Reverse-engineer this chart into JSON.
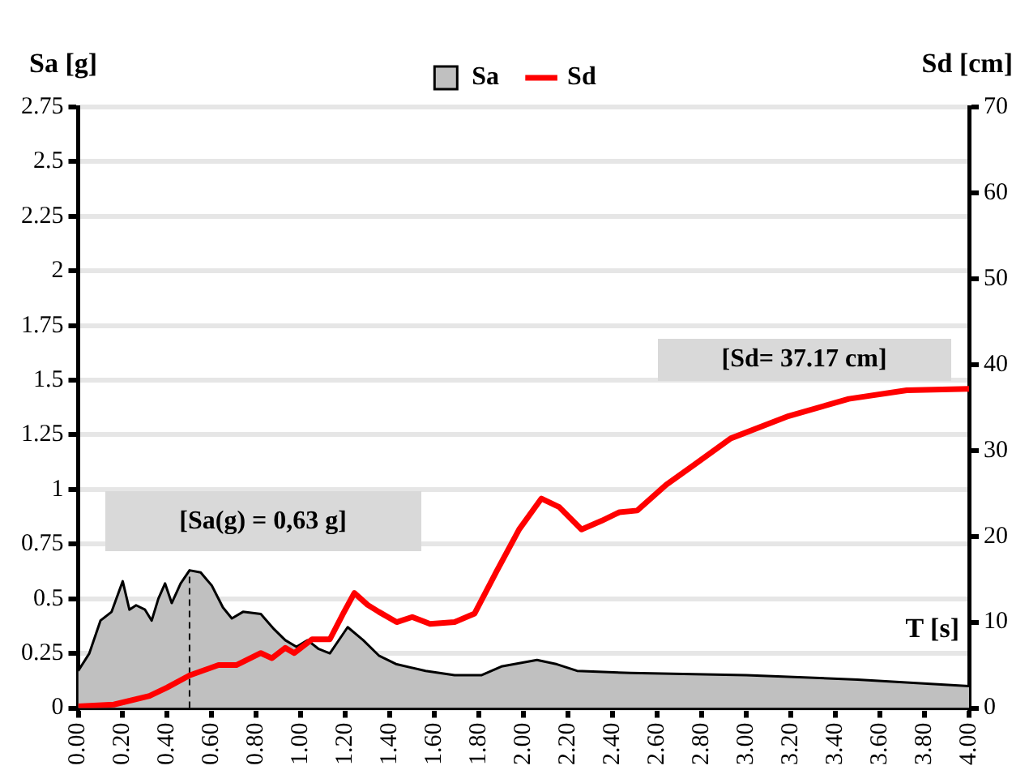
{
  "chart_data": {
    "type": "area",
    "ylabel": "Sa [g]",
    "y2label": "Sd [cm]",
    "xlabel": "T [s]",
    "annotations": [
      "[Sa(g) = 0,63 g]",
      "[Sd= 37.17 cm]"
    ],
    "series": [
      {
        "name": "Sa",
        "color": "#c0c0c0",
        "x": [
          0,
          0.05,
          0.1,
          0.15,
          0.2,
          0.23,
          0.26,
          0.3,
          0.33,
          0.36,
          0.39,
          0.42,
          0.46,
          0.5,
          0.55,
          0.6,
          0.65,
          0.69,
          0.74,
          0.82,
          0.88,
          0.93,
          0.98,
          1.03,
          1.08,
          1.13,
          1.21,
          1.28,
          1.35,
          1.43,
          1.56,
          1.69,
          1.81,
          1.9,
          2.06,
          2.15,
          2.24,
          2.48,
          3.0,
          3.5,
          4.0
        ],
        "values": [
          0.17,
          0.25,
          0.4,
          0.44,
          0.58,
          0.45,
          0.47,
          0.45,
          0.4,
          0.5,
          0.57,
          0.48,
          0.57,
          0.63,
          0.62,
          0.56,
          0.46,
          0.41,
          0.44,
          0.43,
          0.36,
          0.31,
          0.28,
          0.31,
          0.27,
          0.25,
          0.37,
          0.31,
          0.24,
          0.2,
          0.17,
          0.15,
          0.15,
          0.19,
          0.22,
          0.2,
          0.17,
          0.16,
          0.15,
          0.13,
          0.1
        ]
      },
      {
        "name": "Sd",
        "type": "line",
        "color": "#ff0000",
        "axis": "y2",
        "x": [
          0,
          0.16,
          0.32,
          0.4,
          0.5,
          0.63,
          0.71,
          0.82,
          0.87,
          0.93,
          0.97,
          1.05,
          1.13,
          1.19,
          1.24,
          1.3,
          1.35,
          1.43,
          1.5,
          1.58,
          1.69,
          1.78,
          1.88,
          1.98,
          2.08,
          2.16,
          2.26,
          2.35,
          2.43,
          2.51,
          2.64,
          2.77,
          2.93,
          3.19,
          3.46,
          3.72,
          4.0
        ],
        "values": [
          0.2,
          0.4,
          1.4,
          2.4,
          3.8,
          5,
          5,
          6.4,
          5.8,
          7,
          6.4,
          8,
          8,
          11,
          13.4,
          12,
          11.2,
          10,
          10.6,
          9.8,
          10,
          11,
          16,
          20.8,
          24.4,
          23.4,
          20.8,
          21.8,
          22.8,
          23,
          26,
          28.4,
          31.4,
          34,
          36,
          37,
          37.17
        ]
      },
      {
        "type": "line",
        "color": "#000000",
        "line_style": "dashed",
        "x": [
          0.5,
          0.5
        ],
        "values": [
          0,
          0.63
        ]
      }
    ],
    "xlim": [
      0,
      4
    ],
    "xticks": [
      {
        "value": 0,
        "label": "0.00"
      },
      {
        "value": 0.2,
        "label": "0.20"
      },
      {
        "value": 0.4,
        "label": "0.40"
      },
      {
        "value": 0.6,
        "label": "0.60"
      },
      {
        "value": 0.8,
        "label": "0.80"
      },
      {
        "value": 1,
        "label": "1.00"
      },
      {
        "value": 1.2,
        "label": "1.20"
      },
      {
        "value": 1.4,
        "label": "1.40"
      },
      {
        "value": 1.6,
        "label": "1.60"
      },
      {
        "value": 1.8,
        "label": "1.80"
      },
      {
        "value": 2,
        "label": "2.00"
      },
      {
        "value": 2.2,
        "label": "2.20"
      },
      {
        "value": 2.4,
        "label": "2.40"
      },
      {
        "value": 2.6,
        "label": "2.60"
      },
      {
        "value": 2.8,
        "label": "2.80"
      },
      {
        "value": 3,
        "label": "3.00"
      },
      {
        "value": 3.2,
        "label": "3.20"
      },
      {
        "value": 3.4,
        "label": "3.40"
      },
      {
        "value": 3.6,
        "label": "3.60"
      },
      {
        "value": 3.8,
        "label": "3.80"
      },
      {
        "value": 4,
        "label": "4.00"
      }
    ],
    "ylim": [
      0,
      2.75
    ],
    "yticks": [
      0,
      0.25,
      0.5,
      0.75,
      1,
      1.25,
      1.5,
      1.75,
      2,
      2.25,
      2.5,
      2.75
    ],
    "y2lim": [
      0,
      70
    ],
    "y2ticks": [
      0,
      10,
      20,
      30,
      40,
      50,
      60,
      70
    ],
    "grid": "y",
    "legend": "top",
    "marker": "none"
  }
}
